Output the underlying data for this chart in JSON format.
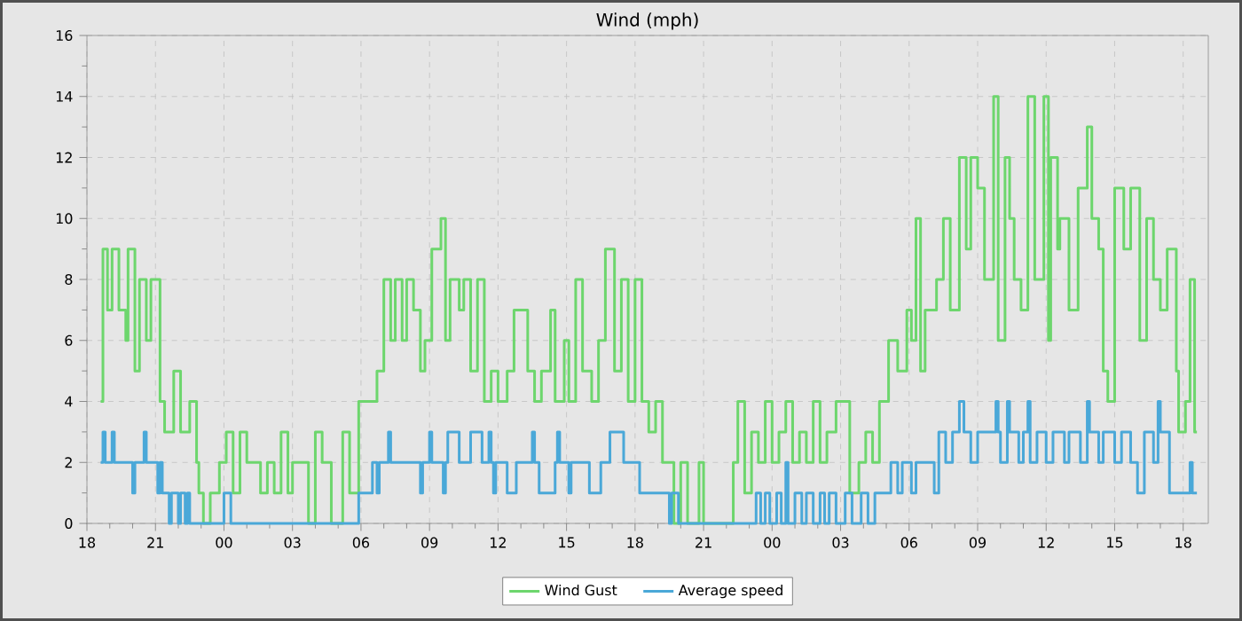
{
  "chart_data": {
    "type": "step",
    "title": "Wind (mph)",
    "xlim": [
      18,
      67.1
    ],
    "ylim": [
      0,
      16
    ],
    "xticks": [
      {
        "value": 18,
        "label": "18"
      },
      {
        "value": 21,
        "label": "21"
      },
      {
        "value": 24,
        "label": "00"
      },
      {
        "value": 27,
        "label": "03"
      },
      {
        "value": 30,
        "label": "06"
      },
      {
        "value": 33,
        "label": "09"
      },
      {
        "value": 36,
        "label": "12"
      },
      {
        "value": 39,
        "label": "15"
      },
      {
        "value": 42,
        "label": "18"
      },
      {
        "value": 45,
        "label": "21"
      },
      {
        "value": 48,
        "label": "00"
      },
      {
        "value": 51,
        "label": "03"
      },
      {
        "value": 54,
        "label": "06"
      },
      {
        "value": 57,
        "label": "09"
      },
      {
        "value": 60,
        "label": "12"
      },
      {
        "value": 63,
        "label": "15"
      },
      {
        "value": 66,
        "label": "18"
      }
    ],
    "yticks": [
      0,
      2,
      4,
      6,
      8,
      10,
      12,
      14,
      16
    ],
    "grid": true,
    "legend": "bottom",
    "marker": "none",
    "line_style": "solid",
    "series": [
      {
        "name": "Wind Gust",
        "color": "#6dd66d",
        "x": [
          18.6,
          18.7,
          18.9,
          19.1,
          19.4,
          19.7,
          19.8,
          20.1,
          20.3,
          20.6,
          20.8,
          21.2,
          21.4,
          21.8,
          22.1,
          22.5,
          22.8,
          22.9,
          23.1,
          23.4,
          23.8,
          24.1,
          24.4,
          24.7,
          25.0,
          25.6,
          25.9,
          26.2,
          26.5,
          26.8,
          27.0,
          27.7,
          28.0,
          28.3,
          28.7,
          29.2,
          29.5,
          29.9,
          30.7,
          31.0,
          31.3,
          31.5,
          31.8,
          32.0,
          32.3,
          32.6,
          32.8,
          33.1,
          33.5,
          33.7,
          33.9,
          34.3,
          34.5,
          34.8,
          35.1,
          35.4,
          35.7,
          36.0,
          36.4,
          36.7,
          37.3,
          37.6,
          37.9,
          38.3,
          38.5,
          38.9,
          39.1,
          39.4,
          39.7,
          40.1,
          40.4,
          40.7,
          41.1,
          41.4,
          41.7,
          42.0,
          42.3,
          42.6,
          42.9,
          43.2,
          43.7,
          44.0,
          44.3,
          44.8,
          45.0,
          46.3,
          46.5,
          46.8,
          47.1,
          47.4,
          47.7,
          48.0,
          48.3,
          48.6,
          48.9,
          49.2,
          49.5,
          49.8,
          50.1,
          50.4,
          50.8,
          51.4,
          51.8,
          52.1,
          52.4,
          52.7,
          53.1,
          53.5,
          53.9,
          54.1,
          54.3,
          54.5,
          54.7,
          55.2,
          55.5,
          55.8,
          56.2,
          56.5,
          56.7,
          57.0,
          57.3,
          57.7,
          57.9,
          58.2,
          58.4,
          58.6,
          58.9,
          59.2,
          59.5,
          59.9,
          60.1,
          60.2,
          60.5,
          60.6,
          61.0,
          61.4,
          61.8,
          62.0,
          62.3,
          62.5,
          62.7,
          63.0,
          63.4,
          63.7,
          64.1,
          64.4,
          64.7,
          65.0,
          65.3,
          65.7,
          65.8,
          66.1,
          66.3,
          66.5,
          66.6
        ],
        "values": [
          4,
          9,
          7,
          9,
          7,
          6,
          9,
          5,
          8,
          6,
          8,
          4,
          3,
          5,
          3,
          4,
          2,
          1,
          0,
          1,
          2,
          3,
          1,
          3,
          2,
          1,
          2,
          1,
          3,
          1,
          2,
          0,
          3,
          2,
          0,
          3,
          1,
          4,
          5,
          8,
          6,
          8,
          6,
          8,
          7,
          5,
          6,
          9,
          10,
          6,
          8,
          7,
          8,
          5,
          8,
          4,
          5,
          4,
          5,
          7,
          5,
          4,
          5,
          7,
          4,
          6,
          4,
          8,
          5,
          4,
          6,
          9,
          5,
          8,
          4,
          8,
          4,
          3,
          4,
          2,
          0,
          2,
          0,
          2,
          0,
          2,
          4,
          1,
          3,
          2,
          4,
          2,
          3,
          4,
          2,
          3,
          2,
          4,
          2,
          3,
          4,
          1,
          2,
          3,
          2,
          4,
          6,
          5,
          7,
          6,
          10,
          5,
          7,
          8,
          10,
          7,
          12,
          9,
          12,
          11,
          8,
          14,
          6,
          12,
          10,
          8,
          7,
          14,
          8,
          14,
          6,
          12,
          9,
          10,
          7,
          11,
          13,
          10,
          9,
          5,
          4,
          11,
          9,
          11,
          6,
          10,
          8,
          7,
          9,
          5,
          3,
          4,
          8,
          3,
          3
        ]
      },
      {
        "name": "Average speed",
        "color": "#4aa8d8",
        "x": [
          18.6,
          18.7,
          18.8,
          19.1,
          19.2,
          20.0,
          20.1,
          20.5,
          20.6,
          21.1,
          21.2,
          21.3,
          21.6,
          21.7,
          22.0,
          22.1,
          22.3,
          22.4,
          22.5,
          24.0,
          24.3,
          29.9,
          30.5,
          30.7,
          30.8,
          31.2,
          31.3,
          32.6,
          32.7,
          33.0,
          33.1,
          33.6,
          33.7,
          33.8,
          34.3,
          34.8,
          35.3,
          35.6,
          35.7,
          35.8,
          35.9,
          36.4,
          36.8,
          37.5,
          37.6,
          37.8,
          38.5,
          38.6,
          38.7,
          39.1,
          39.2,
          40.0,
          40.5,
          40.9,
          41.5,
          42.2,
          43.5,
          43.6,
          43.9,
          47.3,
          47.5,
          47.7,
          47.9,
          48.2,
          48.4,
          48.6,
          48.7,
          49.0,
          49.3,
          49.5,
          49.8,
          50.1,
          50.3,
          50.5,
          50.8,
          51.2,
          51.5,
          51.9,
          52.2,
          52.5,
          53.2,
          53.5,
          53.7,
          54.1,
          54.3,
          55.1,
          55.3,
          55.6,
          55.9,
          56.2,
          56.4,
          56.7,
          57.0,
          57.8,
          57.9,
          58.0,
          58.3,
          58.4,
          58.8,
          59.0,
          59.2,
          59.3,
          59.6,
          60.0,
          60.3,
          60.8,
          61.0,
          61.5,
          61.8,
          61.9,
          62.3,
          62.5,
          63.0,
          63.3,
          63.7,
          64.0,
          64.3,
          64.7,
          64.9,
          65.0,
          65.4,
          66.3,
          66.4,
          66.6
        ],
        "values": [
          2,
          3,
          2,
          3,
          2,
          1,
          2,
          3,
          2,
          1,
          2,
          1,
          0,
          1,
          0,
          1,
          0,
          1,
          0,
          1,
          0,
          1,
          2,
          1,
          2,
          3,
          2,
          1,
          2,
          3,
          2,
          1,
          2,
          3,
          2,
          3,
          2,
          3,
          2,
          1,
          2,
          1,
          2,
          3,
          2,
          1,
          2,
          3,
          2,
          1,
          2,
          1,
          2,
          3,
          2,
          1,
          0,
          1,
          0,
          1,
          0,
          1,
          0,
          1,
          0,
          2,
          0,
          1,
          0,
          1,
          0,
          1,
          0,
          1,
          0,
          1,
          0,
          1,
          0,
          1,
          2,
          1,
          2,
          1,
          2,
          1,
          3,
          2,
          3,
          4,
          3,
          2,
          3,
          4,
          3,
          2,
          4,
          3,
          2,
          3,
          4,
          2,
          3,
          2,
          3,
          2,
          3,
          2,
          4,
          3,
          2,
          3,
          2,
          3,
          2,
          1,
          3,
          2,
          4,
          3,
          1,
          2,
          1,
          1
        ]
      }
    ]
  }
}
